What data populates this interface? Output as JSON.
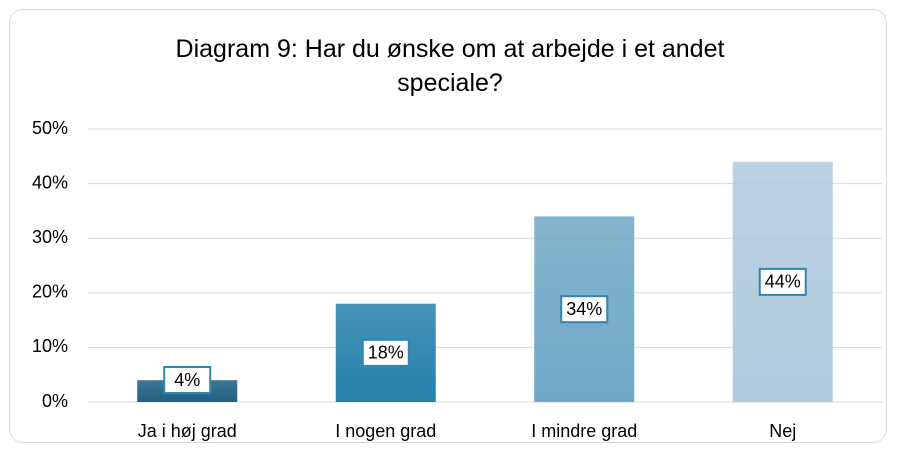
{
  "chart_data": {
    "type": "bar",
    "title": "Diagram 9: Har du ønske om at arbejde i et andet speciale?",
    "categories": [
      "Ja i høj grad",
      "I nogen grad",
      "I mindre grad",
      "Nej"
    ],
    "values": [
      4,
      18,
      34,
      44
    ],
    "value_labels": [
      "4%",
      "18%",
      "34%",
      "44%"
    ],
    "colors": [
      "#1f5f82",
      "#2680aa",
      "#6fa7c7",
      "#afcadd"
    ],
    "ylim": [
      0,
      50
    ],
    "yticks": [
      {
        "value": 0,
        "label": "0%"
      },
      {
        "value": 10,
        "label": "10%"
      },
      {
        "value": 20,
        "label": "20%"
      },
      {
        "value": 30,
        "label": "30%"
      },
      {
        "value": 40,
        "label": "40%"
      },
      {
        "value": 50,
        "label": "50%"
      }
    ],
    "grid": true
  }
}
